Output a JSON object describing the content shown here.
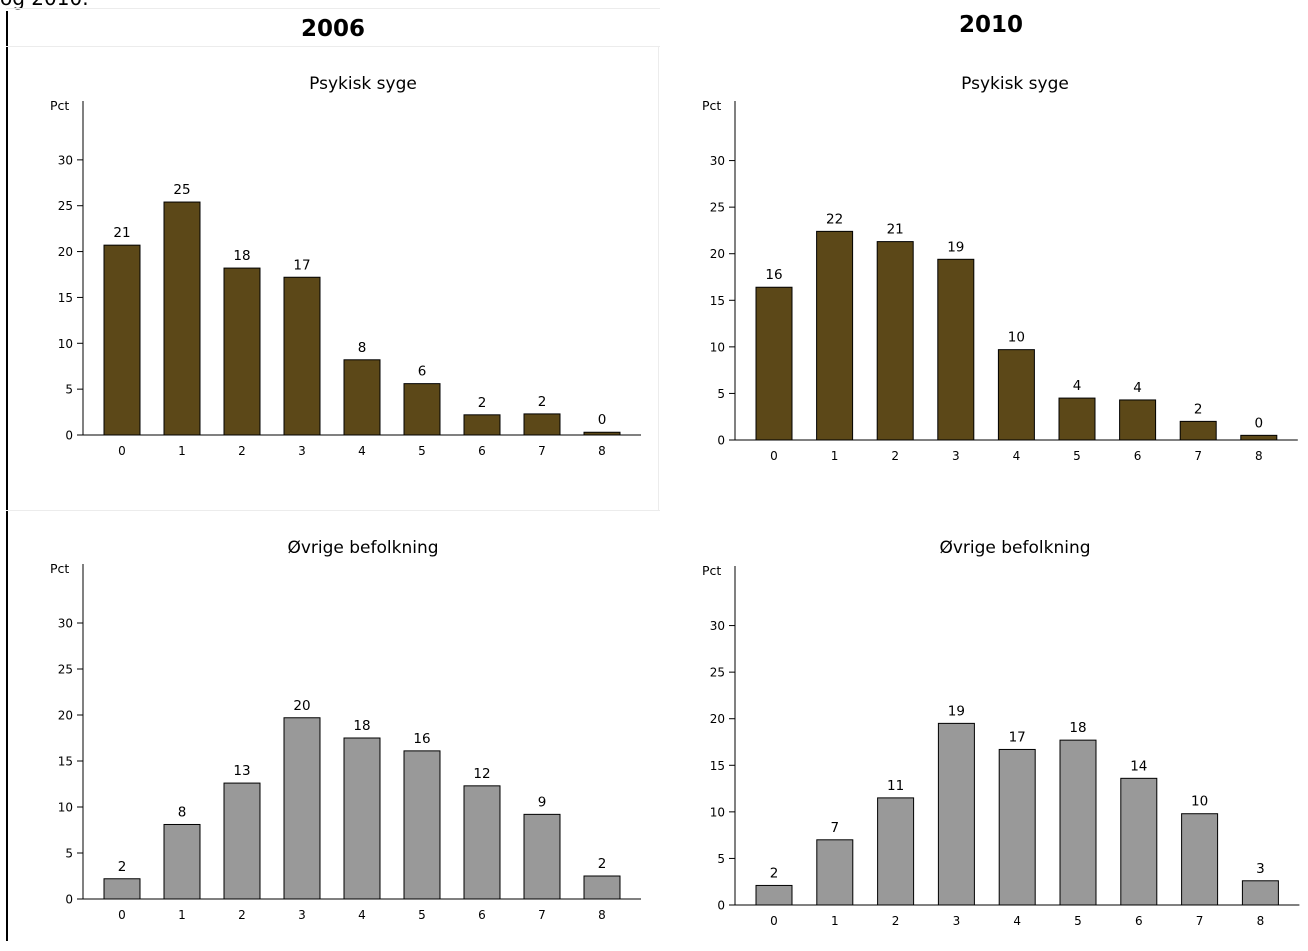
{
  "page": {
    "intro_text": "og 2010."
  },
  "columns": [
    {
      "year": "2006"
    },
    {
      "year": "2010"
    }
  ],
  "chart_data": [
    {
      "type": "bar",
      "column": "2006",
      "title": "Psykisk syge",
      "ylabel": "Pct",
      "categories": [
        "0",
        "1",
        "2",
        "3",
        "4",
        "5",
        "6",
        "7",
        "8"
      ],
      "values": [
        20.7,
        25.4,
        18.2,
        17.2,
        8.2,
        5.6,
        2.2,
        2.3,
        0.3
      ],
      "labels": [
        "21",
        "25",
        "18",
        "17",
        "8",
        "6",
        "2",
        "2",
        "0"
      ],
      "ylim": [
        0,
        35
      ],
      "yticks": [
        0,
        5,
        10,
        15,
        20,
        25,
        30
      ],
      "bar_color": "#5c4818",
      "grid": false
    },
    {
      "type": "bar",
      "column": "2010",
      "title": "Psykisk syge",
      "ylabel": "Pct",
      "categories": [
        "0",
        "1",
        "2",
        "3",
        "4",
        "5",
        "6",
        "7",
        "8"
      ],
      "values": [
        16.4,
        22.4,
        21.3,
        19.4,
        9.7,
        4.5,
        4.3,
        2.0,
        0.5
      ],
      "labels": [
        "16",
        "22",
        "21",
        "19",
        "10",
        "4",
        "4",
        "2",
        "0"
      ],
      "ylim": [
        0,
        35
      ],
      "yticks": [
        0,
        5,
        10,
        15,
        20,
        25,
        30
      ],
      "bar_color": "#5c4818",
      "grid": false
    },
    {
      "type": "bar",
      "column": "2006",
      "title": "Øvrige befolkning",
      "ylabel": "Pct",
      "categories": [
        "0",
        "1",
        "2",
        "3",
        "4",
        "5",
        "6",
        "7",
        "8"
      ],
      "values": [
        2.2,
        8.1,
        12.6,
        19.7,
        17.5,
        16.1,
        12.3,
        9.2,
        2.5
      ],
      "labels": [
        "2",
        "8",
        "13",
        "20",
        "18",
        "16",
        "12",
        "9",
        "2"
      ],
      "ylim": [
        0,
        35
      ],
      "yticks": [
        0,
        5,
        10,
        15,
        20,
        25,
        30
      ],
      "bar_color": "#999999",
      "grid": false
    },
    {
      "type": "bar",
      "column": "2010",
      "title": "Øvrige befolkning",
      "ylabel": "Pct",
      "categories": [
        "0",
        "1",
        "2",
        "3",
        "4",
        "5",
        "6",
        "7",
        "8"
      ],
      "values": [
        2.1,
        7.0,
        11.5,
        19.5,
        16.7,
        17.7,
        13.6,
        9.8,
        2.6
      ],
      "labels": [
        "2",
        "7",
        "11",
        "19",
        "17",
        "18",
        "14",
        "10",
        "3"
      ],
      "ylim": [
        0,
        35
      ],
      "yticks": [
        0,
        5,
        10,
        15,
        20,
        25,
        30
      ],
      "bar_color": "#999999",
      "grid": false
    }
  ]
}
